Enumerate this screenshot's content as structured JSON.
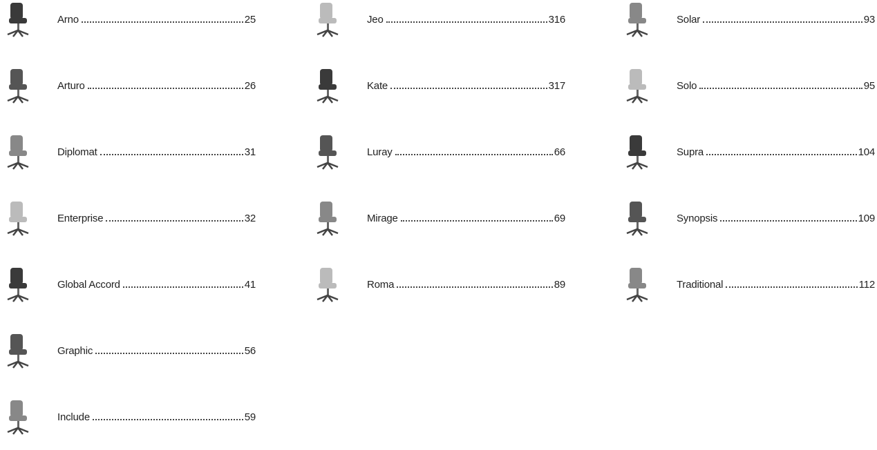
{
  "columns": [
    [
      {
        "name": "Arno",
        "page": "25"
      },
      {
        "name": "Arturo",
        "page": "26"
      },
      {
        "name": "Diplomat",
        "page": "31"
      },
      {
        "name": "Enterprise",
        "page": "32"
      },
      {
        "name": "Global Accord",
        "page": "41"
      },
      {
        "name": "Graphic",
        "page": "56"
      },
      {
        "name": "Include",
        "page": "59"
      }
    ],
    [
      {
        "name": "Jeo",
        "page": "316"
      },
      {
        "name": "Kate",
        "page": "317"
      },
      {
        "name": "Luray",
        "page": "66"
      },
      {
        "name": "Mirage",
        "page": "69"
      },
      {
        "name": "Roma",
        "page": "89"
      }
    ],
    [
      {
        "name": "Solar",
        "page": "93"
      },
      {
        "name": "Solo",
        "page": "95"
      },
      {
        "name": "Supra",
        "page": "104"
      },
      {
        "name": "Synopsis",
        "page": "109"
      },
      {
        "name": "Traditional",
        "page": "112"
      }
    ]
  ]
}
